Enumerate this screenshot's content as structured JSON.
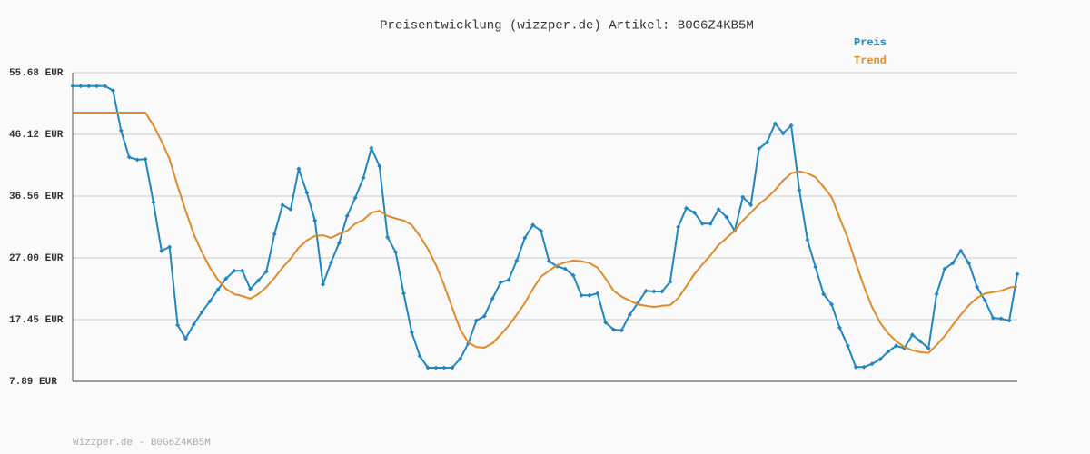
{
  "chart_data": {
    "type": "line",
    "title": "Preisentwicklung (wizzper.de) Artikel: B0G6Z4KB5M",
    "source": "Wizzper.de - B0G6Z4KB5M",
    "categories": [
      null,
      null,
      null,
      null,
      null,
      null,
      null,
      null,
      null,
      null,
      null,
      null,
      null,
      null,
      null,
      null,
      null,
      null,
      null,
      null,
      null,
      null,
      null,
      null,
      null,
      null,
      null,
      null,
      null,
      null,
      null,
      null,
      null,
      null,
      null,
      null,
      null,
      null,
      null,
      null,
      null,
      null,
      null,
      null,
      null,
      null,
      null,
      null,
      null,
      null,
      null,
      null,
      null,
      null,
      null,
      null,
      null,
      null,
      null,
      null,
      null,
      null,
      null,
      null,
      null,
      null,
      null,
      null,
      null,
      null,
      null,
      null,
      null,
      null,
      null,
      null,
      null,
      null,
      null,
      null,
      null,
      null,
      null,
      null,
      null,
      null,
      null,
      null,
      null,
      null,
      null,
      null,
      null,
      null,
      null,
      null,
      null,
      null,
      null,
      null,
      null,
      null,
      null,
      null,
      null,
      null,
      null,
      null,
      null,
      null,
      null,
      null,
      null,
      null,
      null,
      null,
      null,
      null
    ],
    "series": [
      {
        "name": "Preis",
        "color": "#1f86c2",
        "markers": true,
        "values": [
          53.6,
          53.6,
          53.6,
          53.6,
          53.6,
          52.9,
          46.7,
          42.6,
          42.2,
          42.3,
          35.6,
          28.1,
          28.7,
          16.6,
          14.5,
          16.7,
          18.6,
          20.3,
          22.1,
          23.8,
          25.0,
          25.0,
          22.2,
          23.5,
          24.9,
          30.7,
          35.2,
          34.5,
          40.8,
          37.1,
          32.8,
          22.9,
          26.3,
          29.3,
          33.5,
          36.3,
          39.4,
          44.0,
          41.2,
          30.2,
          27.9,
          21.5,
          15.5,
          11.8,
          10.0,
          10.0,
          10.0,
          10.0,
          11.4,
          13.8,
          17.3,
          18.0,
          20.7,
          23.2,
          23.6,
          26.6,
          30.1,
          32.1,
          31.2,
          26.5,
          25.7,
          25.3,
          24.3,
          21.2,
          21.2,
          21.5,
          17.0,
          15.9,
          15.8,
          18.2,
          20.0,
          21.9,
          21.8,
          21.8,
          23.3,
          31.8,
          34.7,
          34.0,
          32.3,
          32.3,
          34.5,
          33.3,
          31.2,
          36.4,
          35.2,
          43.9,
          44.9,
          47.8,
          46.3,
          47.5,
          37.5,
          29.8,
          25.6,
          21.4,
          19.8,
          16.2,
          13.4,
          10.1,
          10.1,
          10.6,
          11.3,
          12.5,
          13.4,
          13.0,
          15.1,
          14.1,
          13.0,
          21.4,
          25.3,
          26.2,
          28.1,
          26.2,
          22.5,
          20.4,
          17.7,
          17.6,
          17.3,
          24.5
        ]
      },
      {
        "name": "Trend",
        "color": "#e08a2a",
        "markers": false,
        "values": [
          49.5,
          49.5,
          49.5,
          49.5,
          49.5,
          49.5,
          49.5,
          49.5,
          49.5,
          49.5,
          47.5,
          45.1,
          42.3,
          38.1,
          34.3,
          30.7,
          27.9,
          25.5,
          23.6,
          22.2,
          21.4,
          21.1,
          20.7,
          21.4,
          22.5,
          23.9,
          25.5,
          26.9,
          28.6,
          29.7,
          30.4,
          30.5,
          30.1,
          30.7,
          31.2,
          32.3,
          32.9,
          34.0,
          34.3,
          33.5,
          33.1,
          32.8,
          32.1,
          30.4,
          28.4,
          25.9,
          22.8,
          19.3,
          15.9,
          13.9,
          13.2,
          13.1,
          13.8,
          15.1,
          16.5,
          18.2,
          20.0,
          22.2,
          24.1,
          25.0,
          25.9,
          26.3,
          26.6,
          26.5,
          26.2,
          25.5,
          23.8,
          21.9,
          21.0,
          20.4,
          19.8,
          19.6,
          19.4,
          19.6,
          19.7,
          20.8,
          22.6,
          24.5,
          26.0,
          27.4,
          29.0,
          30.1,
          31.2,
          32.8,
          34.0,
          35.3,
          36.3,
          37.5,
          39.0,
          40.1,
          40.4,
          40.1,
          39.5,
          38.0,
          36.4,
          33.2,
          30.1,
          26.2,
          22.6,
          19.4,
          17.0,
          15.3,
          14.1,
          13.2,
          12.7,
          12.4,
          12.3,
          13.5,
          14.9,
          16.6,
          18.2,
          19.7,
          20.8,
          21.5,
          21.7,
          21.9,
          22.4,
          22.6
        ]
      }
    ],
    "ylim": [
      7.89,
      55.68
    ],
    "yticks": [
      {
        "value": 7.89,
        "label": "7.89 EUR"
      },
      {
        "value": 17.45,
        "label": "17.45 EUR"
      },
      {
        "value": 27.0,
        "label": "27.00 EUR"
      },
      {
        "value": 36.56,
        "label": "36.56 EUR"
      },
      {
        "value": 46.12,
        "label": "46.12 EUR"
      },
      {
        "value": 55.68,
        "label": "55.68 EUR"
      }
    ],
    "grid": true
  }
}
